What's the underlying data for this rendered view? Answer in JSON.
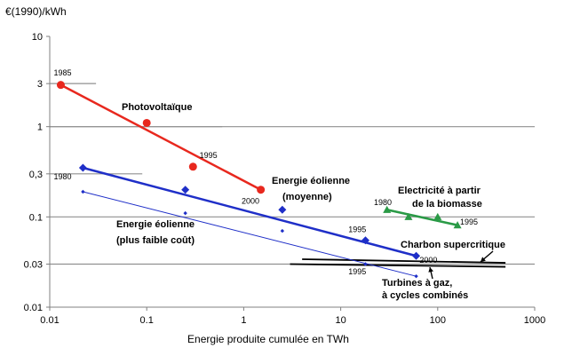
{
  "chart_data": {
    "type": "scatter",
    "ylabel": "€(1990)/kWh",
    "xlabel": "Energie produite cumulée en TWh",
    "xscale": "log",
    "yscale": "log",
    "xlim": [
      0.01,
      1000
    ],
    "ylim": [
      0.01,
      10
    ],
    "xticks": [
      {
        "v": 0.01,
        "l": "0.01"
      },
      {
        "v": 0.1,
        "l": "0.1"
      },
      {
        "v": 1,
        "l": "1"
      },
      {
        "v": 10,
        "l": "10"
      },
      {
        "v": 100,
        "l": "100"
      },
      {
        "v": 1000,
        "l": "1000"
      }
    ],
    "yticks": [
      {
        "v": 0.01,
        "l": "0.01"
      },
      {
        "v": 0.03,
        "l": "0.03"
      },
      {
        "v": 0.1,
        "l": "0.1"
      },
      {
        "v": 0.3,
        "l": "0,3"
      },
      {
        "v": 1,
        "l": "1"
      },
      {
        "v": 3,
        "l": "3"
      },
      {
        "v": 10,
        "l": "10"
      }
    ],
    "grid": {
      "y": [
        0.03,
        0.1,
        1
      ],
      "color": "#909090"
    },
    "series": [
      {
        "name": "Photovoltaïque",
        "color": "#e8281e",
        "marker": "circle",
        "points": [
          [
            0.013,
            2.9
          ],
          [
            0.1,
            1.1
          ],
          [
            0.3,
            0.36
          ],
          [
            1.5,
            0.2
          ]
        ],
        "trend": [
          [
            0.013,
            2.9
          ],
          [
            1.5,
            0.2
          ]
        ],
        "refline": {
          "from": 0.01,
          "to": 0.6,
          "y": 1
        }
      },
      {
        "name": "Energie éolienne (moyenne)",
        "color": "#1f2fc8",
        "marker": "diamond",
        "points": [
          [
            0.022,
            0.35
          ],
          [
            0.25,
            0.2
          ],
          [
            2.5,
            0.12
          ],
          [
            18,
            0.055
          ],
          [
            60,
            0.037
          ]
        ],
        "trend": [
          [
            0.022,
            0.35
          ],
          [
            60,
            0.037
          ]
        ]
      },
      {
        "name": "Energie éolienne (plus faible coût)",
        "color": "#1f2fc8",
        "marker": "smalldiamond",
        "points": [
          [
            0.022,
            0.19
          ],
          [
            0.25,
            0.11
          ],
          [
            2.5,
            0.07
          ],
          [
            18,
            0.03
          ],
          [
            60,
            0.022
          ]
        ],
        "trend": [
          [
            0.022,
            0.19
          ],
          [
            60,
            0.022
          ]
        ]
      },
      {
        "name": "Electricité à partir de la biomasse",
        "color": "#2a9a46",
        "marker": "triangle",
        "points": [
          [
            30,
            0.12
          ],
          [
            50,
            0.1
          ],
          [
            100,
            0.1
          ],
          [
            160,
            0.081
          ]
        ],
        "trend": [
          [
            30,
            0.12
          ],
          [
            160,
            0.081
          ]
        ]
      }
    ],
    "flat_lines": [
      {
        "name": "Charbon supercritique",
        "from": [
          4,
          0.034
        ],
        "to": [
          500,
          0.031
        ]
      },
      {
        "name": "Turbines à gaz, à cycles combinés",
        "from": [
          3,
          0.03
        ],
        "to": [
          500,
          0.028
        ]
      }
    ],
    "ref_segments": [
      {
        "from": 0.01,
        "to": 0.03,
        "y": 3
      },
      {
        "from": 0.01,
        "to": 0.09,
        "y": 0.3
      }
    ],
    "labels": {
      "photovoltaique": "Photovoltaïque",
      "eolienne_moyenne_1": "Energie éolienne",
      "eolienne_moyenne_2": "(moyenne)",
      "eolienne_faible_1": "Energie éolienne",
      "eolienne_faible_2": "(plus faible coût)",
      "biomasse_1": "Electricité à partir",
      "biomasse_2": "de la biomasse",
      "charbon": "Charbon supercritique",
      "gaz_1": "Turbines à gaz,",
      "gaz_2": "à cycles combinés"
    },
    "annotations": [
      {
        "text": "1985",
        "x": 0.011,
        "y": 3.7
      },
      {
        "text": "1995",
        "x": 0.35,
        "y": 0.45
      },
      {
        "text": "2000",
        "x": 0.95,
        "y": 0.14
      },
      {
        "text": "1980",
        "x": 0.011,
        "y": 0.26
      },
      {
        "text": "1995",
        "x": 12,
        "y": 0.068
      },
      {
        "text": "2000",
        "x": 65,
        "y": 0.031
      },
      {
        "text": "1995",
        "x": 12,
        "y": 0.023
      },
      {
        "text": "1980",
        "x": 22,
        "y": 0.135
      },
      {
        "text": "1995",
        "x": 170,
        "y": 0.082
      }
    ]
  }
}
